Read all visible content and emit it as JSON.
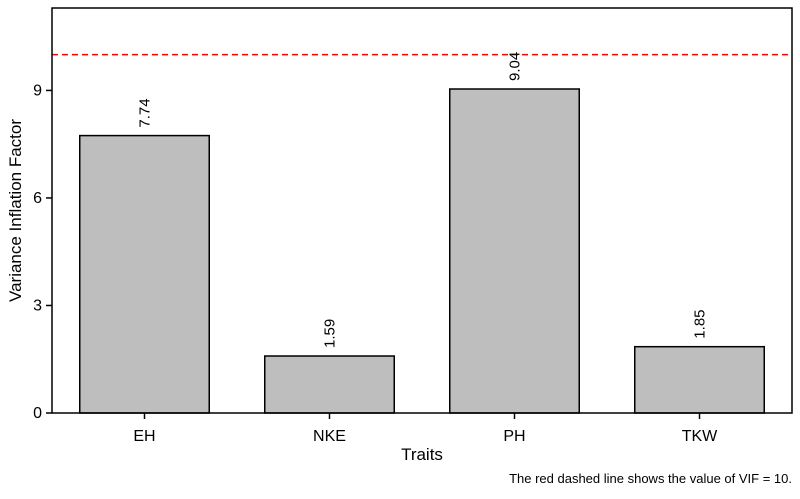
{
  "chart_data": {
    "type": "bar",
    "categories": [
      "EH",
      "NKE",
      "PH",
      "TKW"
    ],
    "values": [
      7.74,
      1.59,
      9.04,
      1.85
    ],
    "data_labels": [
      "7.74",
      "1.59",
      "9.04",
      "1.85"
    ],
    "xlabel": "Traits",
    "ylabel": "Variance Inflation Factor",
    "ylim": [
      0,
      11.3
    ],
    "yticks": [
      0,
      3,
      6,
      9
    ],
    "ytick_labels": [
      "0",
      "3",
      "6",
      "9"
    ],
    "reference_line": {
      "value": 10,
      "color": "#ff0000",
      "style": "dashed"
    },
    "bar_color": "#bebebe",
    "bar_edge_color": "#000000",
    "grid": false,
    "caption": "The red dashed line shows the value of VIF = 10."
  }
}
